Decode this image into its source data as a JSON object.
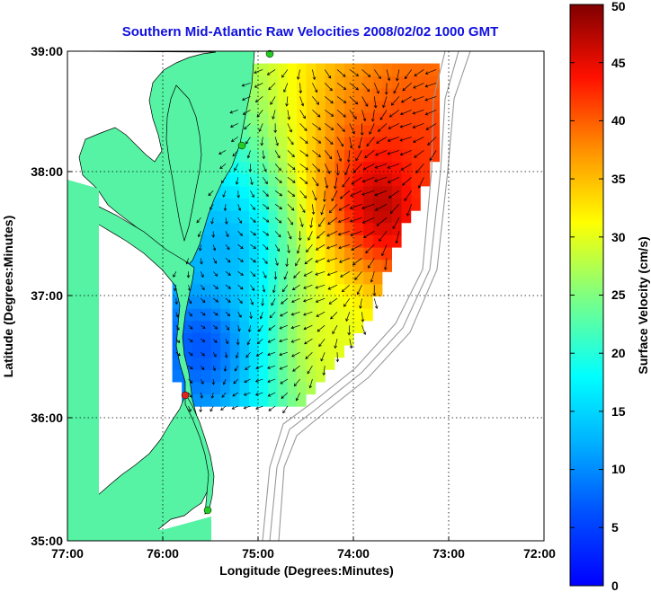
{
  "chart_data": {
    "type": "heatmap",
    "title": "Southern Mid-Atlantic Raw Velocities 2008/02/02 1000 GMT",
    "xlabel": "Longitude (Degrees:Minutes)",
    "ylabel": "Latitude (Degrees:Minutes)",
    "x_ticks": [
      "77:00",
      "76:00",
      "75:00",
      "74:00",
      "73:00",
      "72:00"
    ],
    "y_ticks": [
      "39:00",
      "38:00",
      "37:00",
      "36:00",
      "35:00"
    ],
    "x_range_deg_west": [
      77,
      72
    ],
    "y_range_deg_north": [
      35,
      39
    ],
    "grid": true,
    "colorbar": {
      "label": "Surface Velocity (cm/s)",
      "ticks": [
        "0",
        "5",
        "10",
        "15",
        "20",
        "25",
        "30",
        "35",
        "40",
        "45",
        "50"
      ],
      "range": [
        0,
        50
      ],
      "colormap": "jet"
    },
    "land_color": "#55f3a3",
    "arrow_color": "#000000",
    "station_colors": {
      "station": "#22cc22",
      "selected": "#dd2222"
    },
    "velocity_field": {
      "lon_west": [
        75.95,
        73.1
      ],
      "lat_north": [
        36.1,
        38.9
      ],
      "hotspots": [
        {
          "lon_west": 73.7,
          "lat_north": 37.75,
          "speed_cm_s": 48
        },
        {
          "lon_west": 73.2,
          "lat_north": 37.9,
          "speed_cm_s": 42
        },
        {
          "lon_west": 74.2,
          "lat_north": 36.65,
          "speed_cm_s": 30
        },
        {
          "lon_west": 75.6,
          "lat_north": 36.6,
          "speed_cm_s": 6
        },
        {
          "lon_west": 75.4,
          "lat_north": 37.4,
          "speed_cm_s": 12
        }
      ]
    }
  }
}
